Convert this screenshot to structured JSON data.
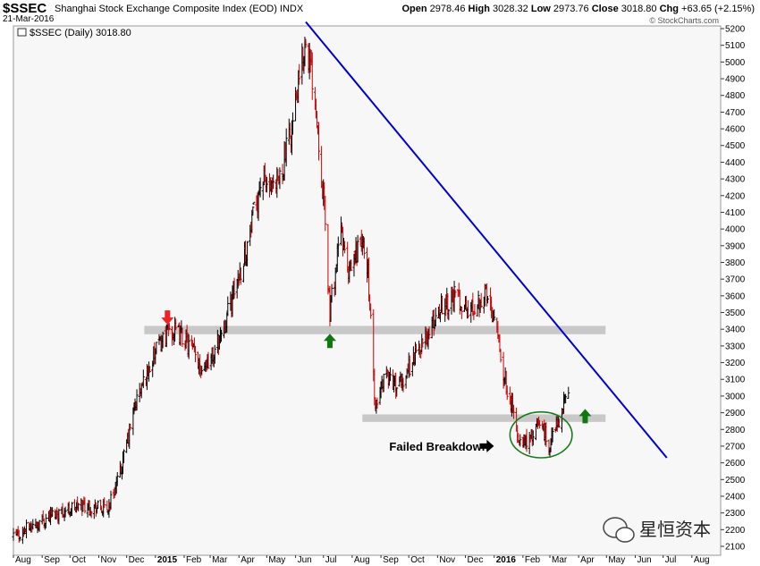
{
  "header": {
    "symbol": "$SSEC",
    "name": "Shanghai Stock Exchange Composite Index (EOD)",
    "exchange": "INDX",
    "date": "21-Mar-2016",
    "open_label": "Open",
    "open": "2978.46",
    "high_label": "High",
    "high": "3028.32",
    "low_label": "Low",
    "low": "2973.76",
    "close_label": "Close",
    "close": "3018.80",
    "chg_label": "Chg",
    "chg": "+63.65 (+2.15%)",
    "watermark": "© StockCharts.com"
  },
  "legend": "$SSEC (Daily) 3018.80",
  "brand_text": "星恒资本",
  "colors": {
    "up_bar": "#000000",
    "down_bar": "#cc0000",
    "support_band": "#c8c8c8",
    "trendline": "#0000cc",
    "ellipse": "#1a7a1a",
    "green_arrow": "#117711",
    "red_arrow": "#ee2222",
    "background": "#f7f7f7"
  },
  "chart_data": {
    "type": "ohlc",
    "title": "Shanghai Stock Exchange Composite Index (EOD)",
    "ylim": [
      2100,
      5200
    ],
    "yticks": [
      2100,
      2200,
      2300,
      2400,
      2500,
      2600,
      2700,
      2800,
      2900,
      3000,
      3100,
      3200,
      3300,
      3400,
      3500,
      3600,
      3700,
      3800,
      3900,
      4000,
      4100,
      4200,
      4300,
      4400,
      4500,
      4600,
      4700,
      4800,
      4900,
      5000,
      5100,
      5200
    ],
    "months": [
      "Aug",
      "Sep",
      "Oct",
      "Nov",
      "Dec",
      "2015",
      "Feb",
      "Mar",
      "Apr",
      "May",
      "Jun",
      "Jul",
      "Aug",
      "Sep",
      "Oct",
      "Nov",
      "Dec",
      "2016",
      "Feb",
      "Mar",
      "Apr",
      "May",
      "Jun",
      "Jul",
      "Aug"
    ],
    "year_labels": [
      "2015",
      "2016"
    ],
    "price_path": [
      [
        "2014-08-01",
        2150
      ],
      [
        "2014-08-20",
        2220
      ],
      [
        "2014-09-15",
        2300
      ],
      [
        "2014-10-15",
        2350
      ],
      [
        "2014-11-10",
        2320
      ],
      [
        "2014-11-25",
        2550
      ],
      [
        "2014-12-10",
        2950
      ],
      [
        "2014-12-31",
        3250
      ],
      [
        "2015-01-15",
        3400
      ],
      [
        "2015-02-01",
        3350
      ],
      [
        "2015-02-20",
        3180
      ],
      [
        "2015-03-05",
        3250
      ],
      [
        "2015-03-20",
        3500
      ],
      [
        "2015-04-10",
        3900
      ],
      [
        "2015-04-25",
        4300
      ],
      [
        "2015-05-10",
        4200
      ],
      [
        "2015-05-28",
        4600
      ],
      [
        "2015-06-12",
        5150
      ],
      [
        "2015-06-22",
        4800
      ],
      [
        "2015-07-01",
        4200
      ],
      [
        "2015-07-08",
        3500
      ],
      [
        "2015-07-20",
        4000
      ],
      [
        "2015-07-28",
        3700
      ],
      [
        "2015-08-10",
        3950
      ],
      [
        "2015-08-18",
        3750
      ],
      [
        "2015-08-26",
        2900
      ],
      [
        "2015-09-05",
        3150
      ],
      [
        "2015-09-20",
        3050
      ],
      [
        "2015-10-08",
        3250
      ],
      [
        "2015-10-25",
        3400
      ],
      [
        "2015-11-05",
        3550
      ],
      [
        "2015-11-20",
        3600
      ],
      [
        "2015-12-05",
        3500
      ],
      [
        "2015-12-22",
        3620
      ],
      [
        "2016-01-04",
        3450
      ],
      [
        "2016-01-10",
        3150
      ],
      [
        "2016-01-20",
        2950
      ],
      [
        "2016-01-28",
        2700
      ],
      [
        "2016-02-10",
        2750
      ],
      [
        "2016-02-20",
        2850
      ],
      [
        "2016-02-29",
        2700
      ],
      [
        "2016-03-10",
        2850
      ],
      [
        "2016-03-21",
        3018.8
      ]
    ],
    "support_bands": [
      {
        "start": "2014-12-20",
        "end": "2016-04-30",
        "low": 3370,
        "high": 3420
      },
      {
        "start": "2015-08-12",
        "end": "2016-04-30",
        "low": 2845,
        "high": 2890
      }
    ],
    "trendline": {
      "start": [
        "2015-06-12",
        5240
      ],
      "end": [
        "2016-07-05",
        2630
      ]
    },
    "annotations": [
      {
        "type": "arrow-down",
        "date": "2015-01-14",
        "price": 3470,
        "color": "red"
      },
      {
        "type": "arrow-up",
        "date": "2015-07-08",
        "price": 3330,
        "color": "green"
      },
      {
        "type": "arrow-up",
        "date": "2016-04-08",
        "price": 2880,
        "color": "green"
      },
      {
        "type": "text",
        "text": "Failed Breakdown",
        "date": "2015-09-10",
        "price": 2700
      },
      {
        "type": "arrow-right",
        "date": "2015-12-24",
        "price": 2700,
        "color": "black"
      },
      {
        "type": "ellipse",
        "start": "2016-01-18",
        "end": "2016-03-25",
        "low": 2630,
        "high": 2905,
        "color": "green"
      }
    ]
  }
}
